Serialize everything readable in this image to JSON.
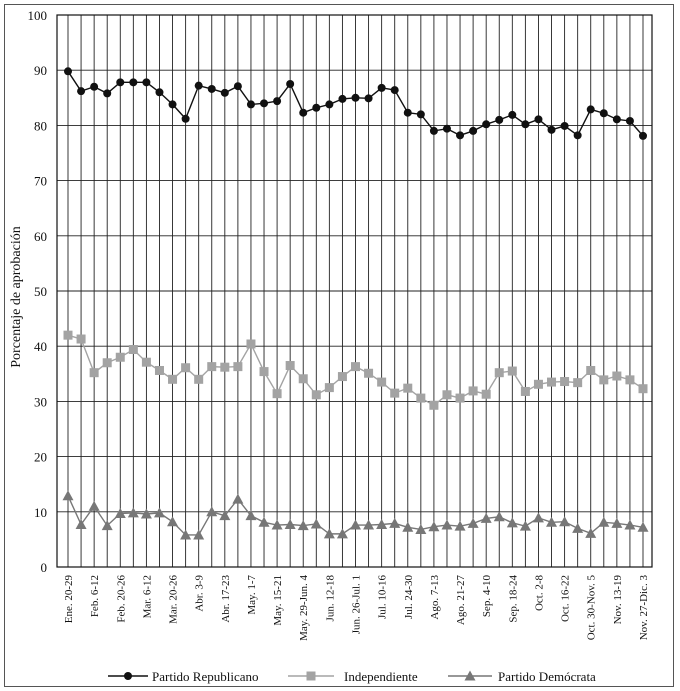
{
  "chart_data": {
    "type": "line",
    "title": "",
    "ylabel": "Porcentaje de aprobación",
    "xlabel": "",
    "ylim": [
      0,
      100
    ],
    "yticks": [
      0,
      10,
      20,
      30,
      40,
      50,
      60,
      70,
      80,
      90,
      100
    ],
    "grid": "vertical and horizontal",
    "legend_position": "bottom",
    "x_tick_labels": [
      "Ene. 20-29",
      "Feb. 6-12",
      "Feb. 20-26",
      "Mar. 6-12",
      "Mar. 20-26",
      "Abr. 3-9",
      "Abr. 17-23",
      "May. 1-7",
      "May. 15-21",
      "May. 29-Jun. 4",
      "Jun. 12-18",
      "Jun. 26-Jul. 1",
      "Jul. 10-16",
      "Jul. 24-30",
      "Ago. 7-13",
      "Ago. 21-27",
      "Sep. 4-10",
      "Sep. 18-24",
      "Oct. 2-8",
      "Oct. 16-22",
      "Oct. 30-Nov. 5",
      "Nov. 13-19",
      "Nov. 27-Dic. 3"
    ],
    "series": [
      {
        "name": "Partido Republicano",
        "color": "#111111",
        "marker": "circle",
        "values": [
          89.8,
          86.2,
          87.0,
          85.8,
          87.8,
          87.8,
          87.8,
          86.0,
          83.8,
          81.2,
          87.2,
          86.6,
          85.9,
          87.1,
          83.8,
          84.0,
          84.4,
          87.5,
          82.3,
          83.2,
          83.8,
          84.8,
          85.0,
          84.9,
          86.8,
          86.4,
          82.3,
          82.0,
          79.0,
          79.4,
          78.2,
          79.0,
          80.2,
          81.0,
          81.9,
          80.2,
          81.1,
          79.2,
          79.9,
          78.2,
          82.9,
          82.2,
          81.1,
          80.8,
          78.1
        ]
      },
      {
        "name": "Independiente",
        "color": "#a3a3a3",
        "marker": "square",
        "values": [
          42.0,
          41.3,
          35.2,
          37.0,
          38.0,
          39.4,
          37.1,
          35.6,
          34.0,
          36.1,
          34.0,
          36.3,
          36.2,
          36.3,
          40.4,
          35.4,
          31.4,
          36.5,
          34.1,
          31.2,
          32.5,
          34.5,
          36.3,
          35.1,
          33.5,
          31.5,
          32.4,
          30.6,
          29.3,
          31.2,
          30.6,
          31.9,
          31.3,
          35.2,
          35.5,
          31.8,
          33.1,
          33.5,
          33.6,
          33.4,
          35.6,
          33.9,
          34.6,
          33.9,
          32.3
        ]
      },
      {
        "name": "Partido Demócrata",
        "color": "#777777",
        "marker": "triangle",
        "values": [
          12.9,
          7.7,
          11.0,
          7.5,
          9.7,
          9.8,
          9.6,
          9.8,
          8.2,
          5.8,
          5.8,
          10.0,
          9.3,
          12.3,
          9.3,
          8.1,
          7.6,
          7.7,
          7.5,
          7.8,
          6.0,
          6.0,
          7.6,
          7.6,
          7.7,
          7.9,
          7.2,
          6.8,
          7.3,
          7.6,
          7.4,
          7.9,
          8.8,
          9.1,
          8.0,
          7.4,
          8.9,
          8.1,
          8.2,
          7.0,
          6.1,
          8.1,
          7.9,
          7.6,
          7.2
        ]
      }
    ]
  }
}
